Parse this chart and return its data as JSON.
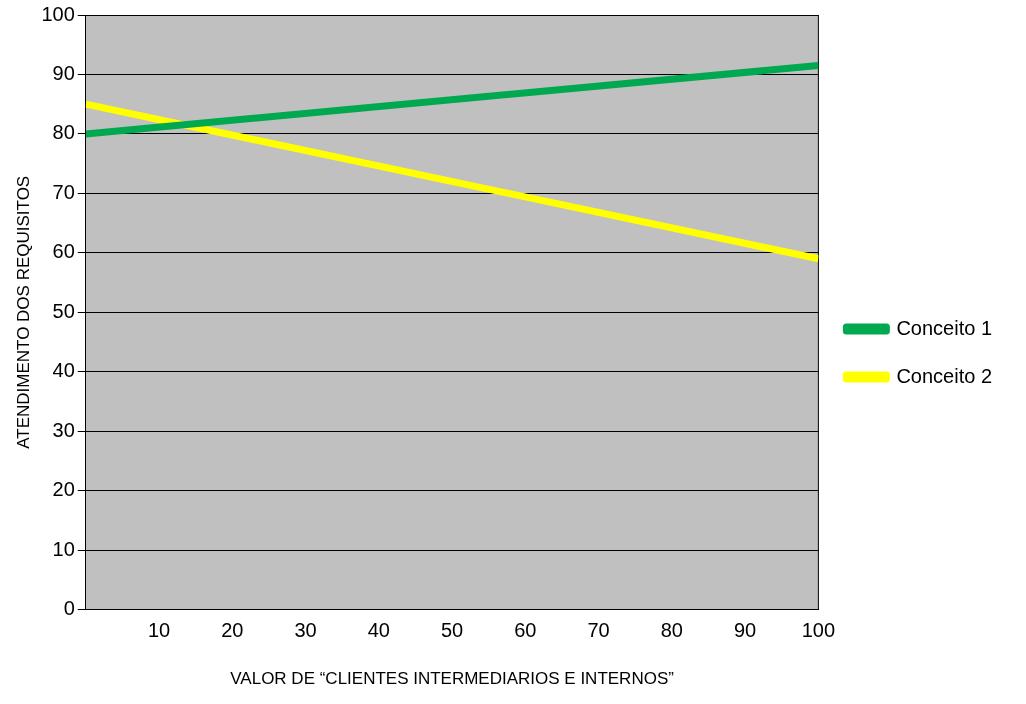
{
  "chart_data": {
    "type": "line",
    "xlabel": "VALOR DE “CLIENTES INTERMEDIARIOS E INTERNOS”",
    "ylabel": "ATENDIMENTO DOS REQUISITOS",
    "x": [
      0,
      100
    ],
    "series": [
      {
        "name": "Conceito 1",
        "color": "#00a850",
        "values": [
          80,
          91.5
        ]
      },
      {
        "name": "Conceito 2",
        "color": "#ffff00",
        "values": [
          85,
          59
        ]
      }
    ],
    "xlim": [
      0,
      100
    ],
    "xticks": [
      10,
      20,
      30,
      40,
      50,
      60,
      70,
      80,
      90,
      100
    ],
    "ylim": [
      0,
      100
    ],
    "yticks": [
      0,
      10,
      20,
      30,
      40,
      50,
      60,
      70,
      80,
      90,
      100
    ],
    "grid": "y",
    "legend": "right",
    "marker": "none",
    "line_style": "solid"
  }
}
